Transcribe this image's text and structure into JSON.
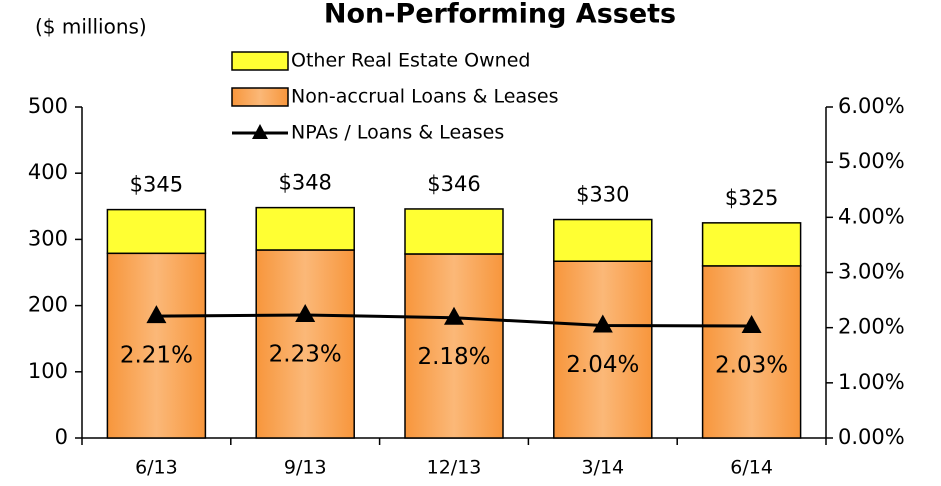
{
  "chart_data": {
    "type": "bar",
    "stacked": true,
    "title": "Non-Performing Assets",
    "subtitle": "($ millions)",
    "categories": [
      "6/13",
      "9/13",
      "12/13",
      "3/14",
      "6/14"
    ],
    "series": [
      {
        "name": "Non-accrual Loans & Leases",
        "color": "#f7963c",
        "values": [
          279,
          284,
          278,
          267,
          260
        ]
      },
      {
        "name": "Other Real Estate Owned",
        "color": "#ffff33",
        "values": [
          66,
          64,
          68,
          63,
          65
        ]
      },
      {
        "name": "NPAs / Loans & Leases",
        "type": "line",
        "axis": "y2",
        "color": "#000000",
        "values": [
          2.21,
          2.23,
          2.18,
          2.04,
          2.03
        ],
        "value_labels": [
          "2.21%",
          "2.23%",
          "2.18%",
          "2.04%",
          "2.03%"
        ]
      }
    ],
    "totals": [
      345,
      348,
      346,
      330,
      325
    ],
    "total_labels": [
      "$345",
      "$348",
      "$346",
      "$330",
      "$325"
    ],
    "ylim": [
      0,
      500
    ],
    "yticks": [
      0,
      100,
      200,
      300,
      400,
      500
    ],
    "y2lim": [
      0,
      6
    ],
    "y2ticks": [
      {
        "value": 0,
        "label": "0.00%"
      },
      {
        "value": 1,
        "label": "1.00%"
      },
      {
        "value": 2,
        "label": "2.00%"
      },
      {
        "value": 3,
        "label": "3.00%"
      },
      {
        "value": 4,
        "label": "4.00%"
      },
      {
        "value": 5,
        "label": "5.00%"
      },
      {
        "value": 6,
        "label": "6.00%"
      }
    ],
    "legend": "top"
  }
}
